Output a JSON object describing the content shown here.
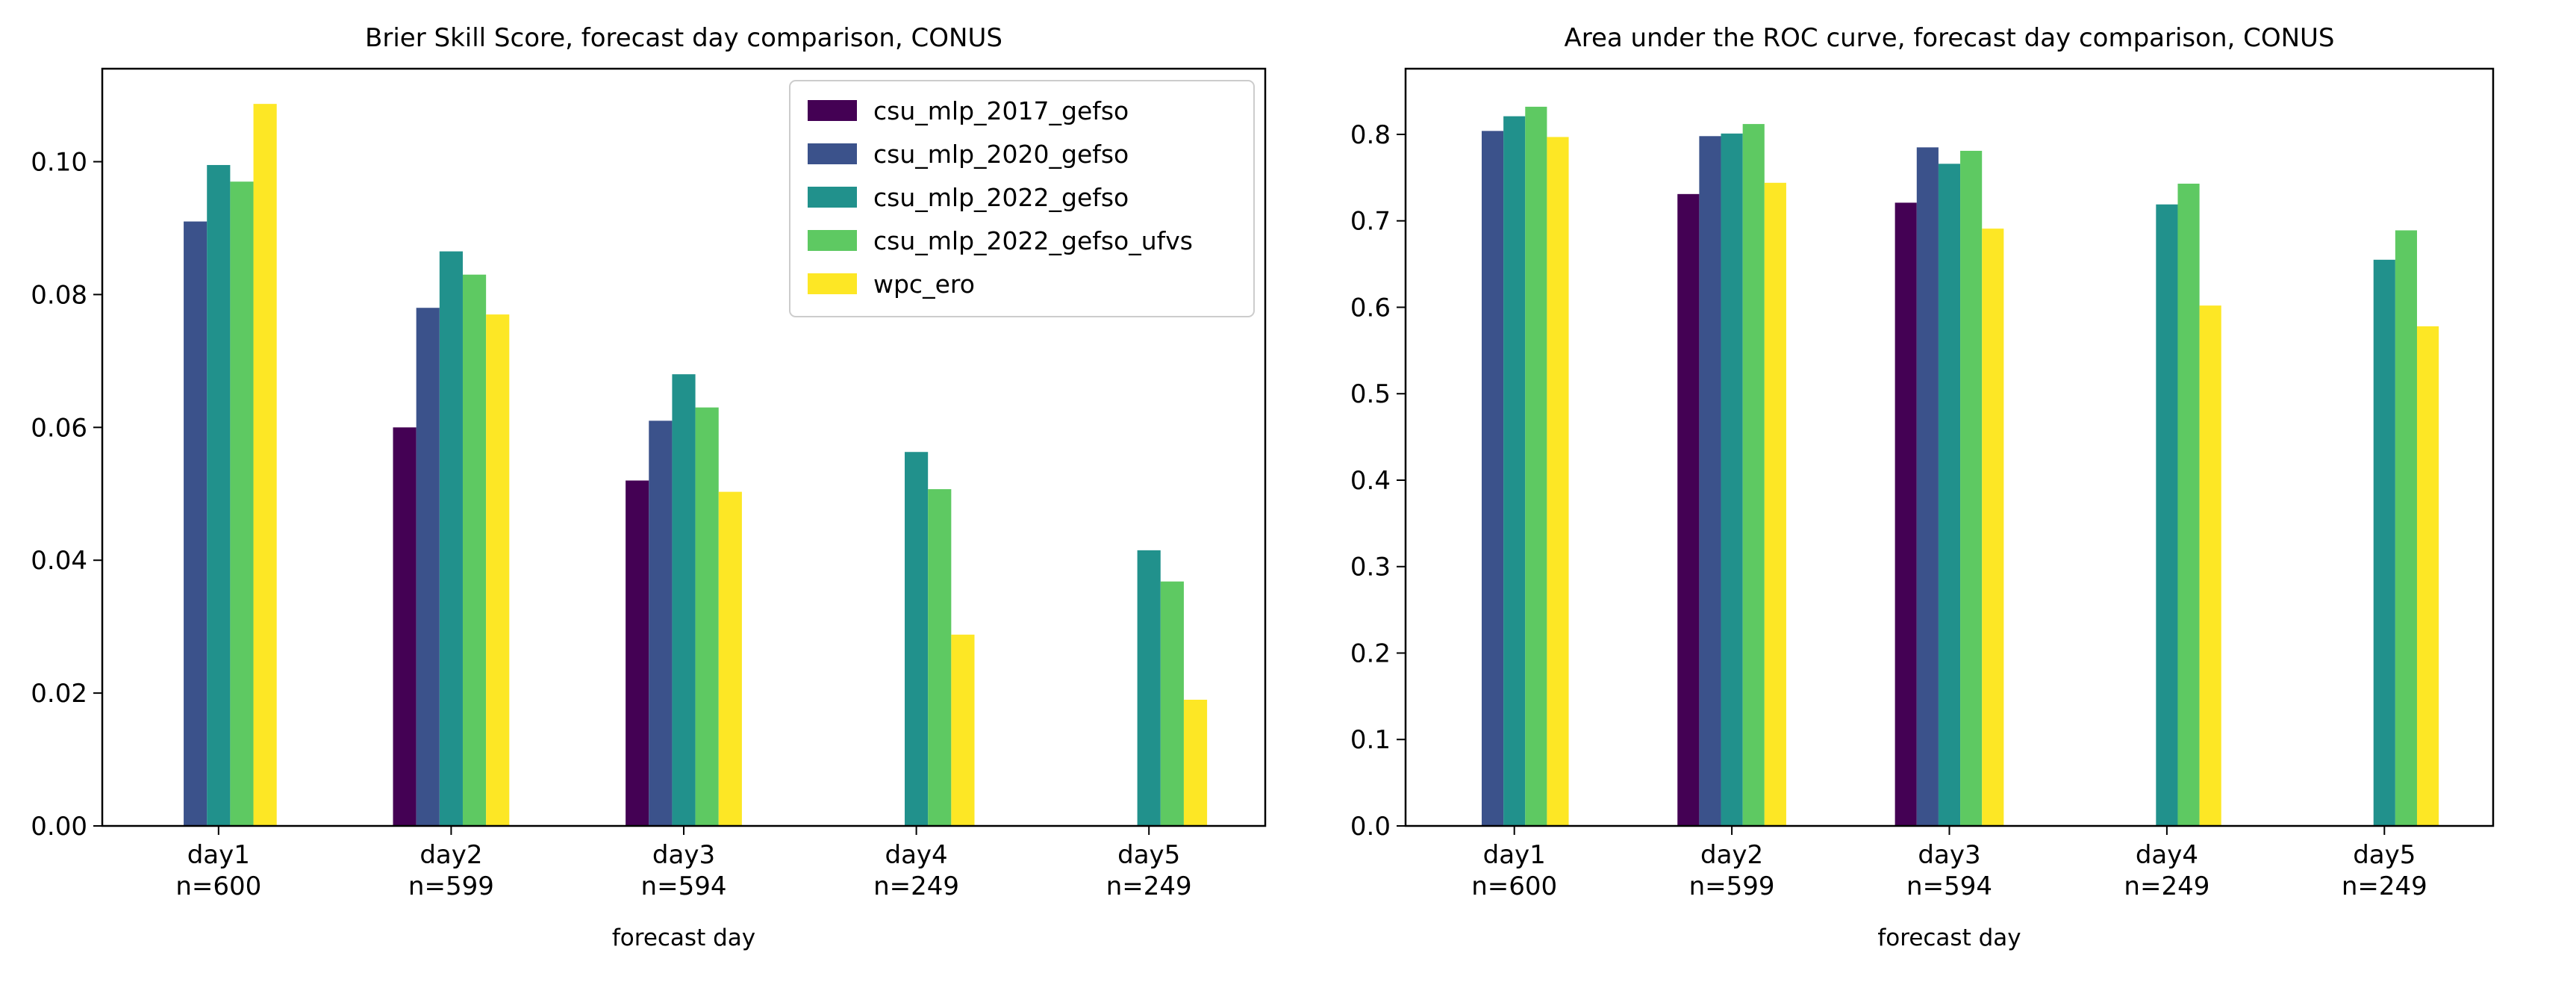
{
  "chart_data": [
    {
      "type": "bar",
      "title": "Brier Skill Score, forecast day comparison, CONUS",
      "xlabel": "forecast day",
      "ylabel": "",
      "categories": [
        "day1\nn=600",
        "day2\nn=599",
        "day3\nn=594",
        "day4\nn=249",
        "day5\nn=249"
      ],
      "ylim": [
        0,
        0.114
      ],
      "yticks": [
        0.0,
        0.02,
        0.04,
        0.06,
        0.08,
        0.1
      ],
      "ytick_labels": [
        "0.00",
        "0.02",
        "0.04",
        "0.06",
        "0.08",
        "0.10"
      ],
      "grid": false,
      "legend": "top-right",
      "series": [
        {
          "name": "csu_mlp_2017_gefso",
          "color": "#440154",
          "values": [
            null,
            0.06,
            0.052,
            null,
            null
          ]
        },
        {
          "name": "csu_mlp_2020_gefso",
          "color": "#3b528b",
          "values": [
            0.091,
            0.078,
            0.061,
            null,
            null
          ]
        },
        {
          "name": "csu_mlp_2022_gefso",
          "color": "#21918c",
          "values": [
            0.0995,
            0.0865,
            0.068,
            0.0563,
            0.0415
          ]
        },
        {
          "name": "csu_mlp_2022_gefso_ufvs",
          "color": "#5ec962",
          "values": [
            0.097,
            0.083,
            0.063,
            0.0507,
            0.0368
          ]
        },
        {
          "name": "wpc_ero",
          "color": "#fde725",
          "values": [
            0.1087,
            0.077,
            0.0503,
            0.0288,
            0.019
          ]
        }
      ]
    },
    {
      "type": "bar",
      "title": "Area under the ROC curve, forecast day comparison, CONUS",
      "xlabel": "forecast day",
      "ylabel": "",
      "categories": [
        "day1\nn=600",
        "day2\nn=599",
        "day3\nn=594",
        "day4\nn=249",
        "day5\nn=249"
      ],
      "ylim": [
        0,
        0.876
      ],
      "yticks": [
        0.0,
        0.1,
        0.2,
        0.3,
        0.4,
        0.5,
        0.6,
        0.7,
        0.8
      ],
      "ytick_labels": [
        "0.0",
        "0.1",
        "0.2",
        "0.3",
        "0.4",
        "0.5",
        "0.6",
        "0.7",
        "0.8"
      ],
      "grid": false,
      "legend": "none",
      "series": [
        {
          "name": "csu_mlp_2017_gefso",
          "color": "#440154",
          "values": [
            null,
            0.731,
            0.721,
            null,
            null
          ]
        },
        {
          "name": "csu_mlp_2020_gefso",
          "color": "#3b528b",
          "values": [
            0.804,
            0.798,
            0.785,
            null,
            null
          ]
        },
        {
          "name": "csu_mlp_2022_gefso",
          "color": "#21918c",
          "values": [
            0.821,
            0.801,
            0.766,
            0.719,
            0.655
          ]
        },
        {
          "name": "csu_mlp_2022_gefso_ufvs",
          "color": "#5ec962",
          "values": [
            0.832,
            0.812,
            0.781,
            0.743,
            0.689
          ]
        },
        {
          "name": "wpc_ero",
          "color": "#fde725",
          "values": [
            0.797,
            0.744,
            0.691,
            0.602,
            0.578
          ]
        }
      ]
    }
  ]
}
